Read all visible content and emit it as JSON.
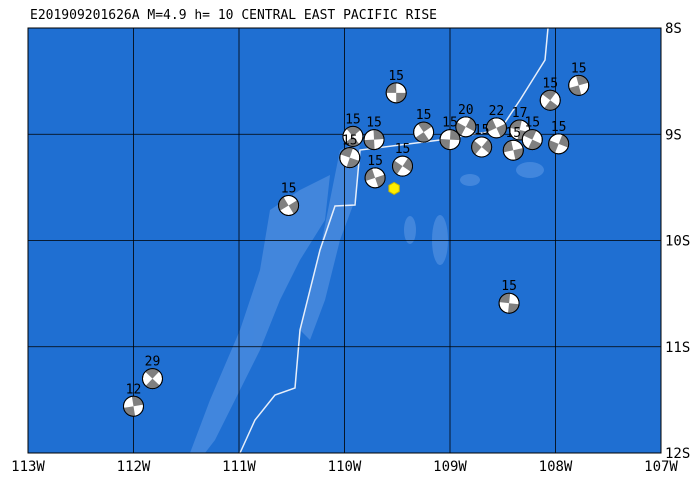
{
  "title": "E201909201626A M=4.9 h= 10 CENTRAL EAST PACIFIC RISE",
  "lonlim": [
    -113,
    -107
  ],
  "latlim": [
    -8,
    -12
  ],
  "lonticks": [
    {
      "value": -113,
      "label": "113W"
    },
    {
      "value": -112,
      "label": "112W"
    },
    {
      "value": -111,
      "label": "111W"
    },
    {
      "value": -110,
      "label": "110W"
    },
    {
      "value": -109,
      "label": "109W"
    },
    {
      "value": -108,
      "label": "108W"
    },
    {
      "value": -107,
      "label": "107W"
    }
  ],
  "latticks": [
    {
      "value": -8,
      "label": "8S"
    },
    {
      "value": -9,
      "label": "9S"
    },
    {
      "value": -10,
      "label": "10S"
    },
    {
      "value": -11,
      "label": "11S"
    },
    {
      "value": -12,
      "label": "12S"
    }
  ],
  "epicenter": {
    "lon": -109.53,
    "lat": -9.51
  },
  "events": [
    {
      "label": "15",
      "lon": -109.51,
      "lat": -8.61
    },
    {
      "label": "15",
      "lon": -108.05,
      "lat": -8.68
    },
    {
      "label": "15",
      "lon": -107.78,
      "lat": -8.54
    },
    {
      "label": "15",
      "lon": -107.97,
      "lat": -9.09
    },
    {
      "label": "15",
      "lon": -110.53,
      "lat": -9.67
    },
    {
      "label": "15",
      "lon": -108.44,
      "lat": -10.59
    },
    {
      "label": "29",
      "lon": -111.82,
      "lat": -11.3
    },
    {
      "label": "12",
      "lon": -112.0,
      "lat": -11.56
    },
    {
      "label": "20",
      "lon": -108.85,
      "lat": -8.93
    },
    {
      "label": "22",
      "lon": -108.56,
      "lat": -8.94
    },
    {
      "label": "17",
      "lon": -108.34,
      "lat": -8.96
    },
    {
      "label": "15",
      "lon": -109.92,
      "lat": -9.02
    },
    {
      "label": "15",
      "lon": -109.72,
      "lat": -9.05
    },
    {
      "label": "15",
      "lon": -109.45,
      "lat": -9.3
    },
    {
      "label": "15",
      "lon": -109.71,
      "lat": -9.41
    },
    {
      "label": "15",
      "lon": -109.95,
      "lat": -9.22
    },
    {
      "label": "15",
      "lon": -109.25,
      "lat": -8.98
    },
    {
      "label": "15",
      "lon": -109.0,
      "lat": -9.05
    },
    {
      "label": "15",
      "lon": -108.7,
      "lat": -9.12
    },
    {
      "label": "15",
      "lon": -108.4,
      "lat": -9.15
    },
    {
      "label": "15",
      "lon": -108.22,
      "lat": -9.05
    }
  ]
}
